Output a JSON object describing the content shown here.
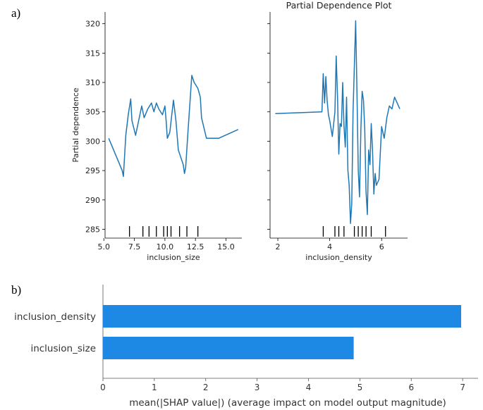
{
  "panel_labels": {
    "a": "a)",
    "b": "b)"
  },
  "chart_data": [
    {
      "type": "line",
      "panel": "a-left",
      "title": "",
      "xlabel": "inclusion_size",
      "ylabel": "Partial dependence",
      "xlim": [
        5.1,
        16.3
      ],
      "ylim": [
        283.5,
        322
      ],
      "xticks": [
        5.0,
        7.5,
        10.0,
        12.5,
        15.0
      ],
      "xtick_labels": [
        "5.0",
        "7.5",
        "10.0",
        "12.5",
        "15.0"
      ],
      "yticks": [
        285,
        290,
        295,
        300,
        305,
        310,
        315,
        320
      ],
      "ytick_labels": [
        "285",
        "290",
        "295",
        "300",
        "305",
        "310",
        "315",
        "320"
      ],
      "x": [
        5.4,
        6.5,
        6.6,
        6.8,
        7.0,
        7.2,
        7.3,
        7.6,
        8.1,
        8.3,
        8.6,
        8.9,
        9.1,
        9.3,
        9.5,
        9.8,
        10.0,
        10.1,
        10.2,
        10.4,
        10.7,
        10.9,
        11.1,
        11.5,
        11.6,
        11.7,
        11.9,
        12.2,
        12.4,
        12.7,
        12.9,
        13.0,
        13.4,
        14.4,
        16.0
      ],
      "y": [
        300.5,
        295.0,
        294.0,
        301.0,
        304.5,
        307.2,
        303.5,
        301.0,
        306.0,
        304.0,
        305.5,
        306.5,
        305.0,
        306.5,
        305.5,
        304.5,
        306.0,
        303.5,
        300.5,
        301.5,
        307.0,
        303.5,
        298.5,
        296.0,
        294.5,
        295.5,
        302.0,
        311.2,
        310.0,
        309.0,
        307.5,
        304.0,
        300.5,
        300.5,
        302.0
      ],
      "rug": [
        7.1,
        8.2,
        8.7,
        9.3,
        9.9,
        10.2,
        10.5,
        11.2,
        11.8,
        12.7
      ]
    },
    {
      "type": "line",
      "panel": "a-right",
      "title": "Partial Dependence Plot",
      "xlabel": "inclusion_density",
      "ylabel": "",
      "xlim": [
        1.7,
        7.0
      ],
      "ylim": [
        283.5,
        322
      ],
      "xticks": [
        2,
        4,
        6
      ],
      "xtick_labels": [
        "2",
        "4",
        "6"
      ],
      "x": [
        1.9,
        3.7,
        3.75,
        3.8,
        3.85,
        3.9,
        3.95,
        4.0,
        4.1,
        4.2,
        4.25,
        4.3,
        4.35,
        4.4,
        4.45,
        4.5,
        4.55,
        4.6,
        4.65,
        4.7,
        4.75,
        4.8,
        4.85,
        4.9,
        4.95,
        5.0,
        5.05,
        5.1,
        5.15,
        5.2,
        5.25,
        5.3,
        5.35,
        5.4,
        5.45,
        5.5,
        5.55,
        5.6,
        5.65,
        5.7,
        5.75,
        5.8,
        5.9,
        6.0,
        6.1,
        6.2,
        6.3,
        6.4,
        6.5,
        6.6,
        6.7
      ],
      "y": [
        304.7,
        305.0,
        311.5,
        306.5,
        311.0,
        307.0,
        304.5,
        303.5,
        300.8,
        305.0,
        314.5,
        307.5,
        297.8,
        303.0,
        302.5,
        310.0,
        302.5,
        299.0,
        307.5,
        295.0,
        292.5,
        286.0,
        289.5,
        305.0,
        313.0,
        320.5,
        308.0,
        295.0,
        290.5,
        302.0,
        308.5,
        307.0,
        302.0,
        291.5,
        287.5,
        298.5,
        296.0,
        303.0,
        298.5,
        291.0,
        294.5,
        292.5,
        293.5,
        302.5,
        300.5,
        304.0,
        306.0,
        305.5,
        307.5,
        306.5,
        305.5
      ],
      "rug": [
        3.75,
        4.2,
        4.35,
        4.55,
        4.95,
        5.1,
        5.25,
        5.4,
        5.6,
        6.15
      ]
    },
    {
      "type": "bar",
      "orientation": "horizontal",
      "panel": "b",
      "categories": [
        "inclusion_density",
        "inclusion_size"
      ],
      "values": [
        6.97,
        4.88
      ],
      "xlabel": "mean(|SHAP value|) (average impact on model output magnitude)",
      "xlim": [
        0,
        7.3
      ],
      "xticks": [
        0,
        1,
        2,
        3,
        4,
        5,
        6,
        7
      ],
      "xtick_labels": [
        "0",
        "1",
        "2",
        "3",
        "4",
        "5",
        "6",
        "7"
      ],
      "color": "#1e88e5"
    }
  ],
  "colors": {
    "line": "#1f77b4",
    "bar": "#1e88e5",
    "axis": "#000000"
  }
}
